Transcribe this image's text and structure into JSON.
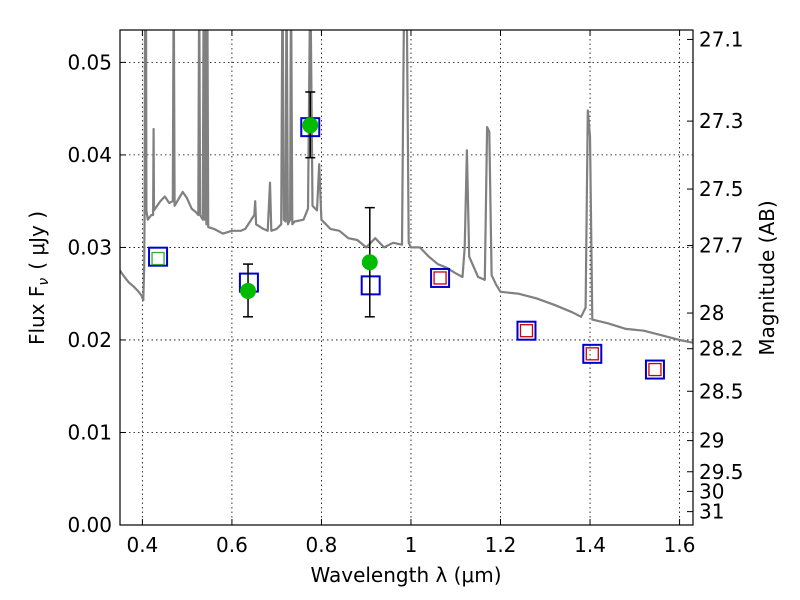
{
  "chart_data": {
    "type": "scatter",
    "xlabel": "Wavelength  λ (μm)",
    "ylabel_left": "Flux  F",
    "ylabel_left_sub": "ν",
    "ylabel_left_unit": "( μJy )",
    "ylabel_right": "Magnitude (AB)",
    "xlim": [
      0.35,
      1.63
    ],
    "ylim": [
      0.0,
      0.0535
    ],
    "grid": true,
    "x_ticks": [
      0.4,
      0.6,
      0.8,
      1.0,
      1.2,
      1.4,
      1.6
    ],
    "x_tick_labels": [
      "0.4",
      "0.6",
      "0.8",
      "1",
      "1.2",
      "1.4",
      "1.6"
    ],
    "y_ticks": [
      0.0,
      0.01,
      0.02,
      0.03,
      0.04,
      0.05
    ],
    "y_tick_labels": [
      "0.00",
      "0.01",
      "0.02",
      "0.03",
      "0.04",
      "0.05"
    ],
    "right_ticks": [
      27.1,
      27.3,
      27.5,
      27.7,
      28.0,
      28.2,
      28.5,
      29.0,
      29.5,
      30.0,
      31.0
    ],
    "right_tick_labels": [
      "27.1",
      "27.3",
      "27.5",
      "27.7",
      "28",
      "28.2",
      "28.5",
      "29",
      "29.5",
      "30",
      "31"
    ],
    "series": [
      {
        "kind": "line",
        "color": "#808080",
        "points": [
          [
            0.35,
            0.0275
          ],
          [
            0.36,
            0.0268
          ],
          [
            0.37,
            0.0262
          ],
          [
            0.38,
            0.0258
          ],
          [
            0.39,
            0.0253
          ],
          [
            0.398,
            0.0248
          ],
          [
            0.402,
            0.0243
          ],
          [
            0.404,
            0.028
          ],
          [
            0.405,
            0.034
          ],
          [
            0.406,
            0.06
          ],
          [
            0.408,
            0.06
          ],
          [
            0.409,
            0.034
          ],
          [
            0.412,
            0.033
          ],
          [
            0.42,
            0.0335
          ],
          [
            0.424,
            0.0335
          ],
          [
            0.425,
            0.0428
          ],
          [
            0.426,
            0.034
          ],
          [
            0.44,
            0.035
          ],
          [
            0.45,
            0.0355
          ],
          [
            0.46,
            0.0348
          ],
          [
            0.468,
            0.035
          ],
          [
            0.47,
            0.06
          ],
          [
            0.472,
            0.0345
          ],
          [
            0.49,
            0.036
          ],
          [
            0.5,
            0.0353
          ],
          [
            0.51,
            0.0342
          ],
          [
            0.52,
            0.0338
          ],
          [
            0.525,
            0.0335
          ],
          [
            0.527,
            0.06
          ],
          [
            0.529,
            0.0335
          ],
          [
            0.535,
            0.033
          ],
          [
            0.537,
            0.06
          ],
          [
            0.539,
            0.033
          ],
          [
            0.541,
            0.06
          ],
          [
            0.543,
            0.0325
          ],
          [
            0.545,
            0.06
          ],
          [
            0.547,
            0.0322
          ],
          [
            0.56,
            0.032
          ],
          [
            0.58,
            0.0315
          ],
          [
            0.6,
            0.0318
          ],
          [
            0.62,
            0.0318
          ],
          [
            0.63,
            0.032
          ],
          [
            0.65,
            0.0335
          ],
          [
            0.652,
            0.035
          ],
          [
            0.654,
            0.0325
          ],
          [
            0.67,
            0.032
          ],
          [
            0.68,
            0.0318
          ],
          [
            0.685,
            0.037
          ],
          [
            0.688,
            0.0318
          ],
          [
            0.7,
            0.032
          ],
          [
            0.71,
            0.0325
          ],
          [
            0.713,
            0.06
          ],
          [
            0.716,
            0.033
          ],
          [
            0.72,
            0.0328
          ],
          [
            0.722,
            0.06
          ],
          [
            0.725,
            0.0325
          ],
          [
            0.73,
            0.033
          ],
          [
            0.732,
            0.06
          ],
          [
            0.735,
            0.0325
          ],
          [
            0.74,
            0.0328
          ],
          [
            0.76,
            0.033
          ],
          [
            0.77,
            0.0342
          ],
          [
            0.775,
            0.06
          ],
          [
            0.78,
            0.0345
          ],
          [
            0.79,
            0.034
          ],
          [
            0.795,
            0.039
          ],
          [
            0.8,
            0.033
          ],
          [
            0.82,
            0.032
          ],
          [
            0.84,
            0.0318
          ],
          [
            0.86,
            0.031
          ],
          [
            0.88,
            0.0308
          ],
          [
            0.9,
            0.03
          ],
          [
            0.92,
            0.031
          ],
          [
            0.94,
            0.03
          ],
          [
            0.96,
            0.0305
          ],
          [
            0.98,
            0.0303
          ],
          [
            0.985,
            0.06
          ],
          [
            0.99,
            0.06
          ],
          [
            0.995,
            0.0305
          ],
          [
            1.0,
            0.03
          ],
          [
            1.02,
            0.03
          ],
          [
            1.04,
            0.029
          ],
          [
            1.06,
            0.0282
          ],
          [
            1.08,
            0.0278
          ],
          [
            1.1,
            0.0272
          ],
          [
            1.115,
            0.0268
          ],
          [
            1.12,
            0.03
          ],
          [
            1.125,
            0.0405
          ],
          [
            1.13,
            0.029
          ],
          [
            1.15,
            0.0268
          ],
          [
            1.165,
            0.0265
          ],
          [
            1.17,
            0.043
          ],
          [
            1.175,
            0.0425
          ],
          [
            1.18,
            0.027
          ],
          [
            1.19,
            0.026
          ],
          [
            1.2,
            0.0252
          ],
          [
            1.24,
            0.025
          ],
          [
            1.28,
            0.0245
          ],
          [
            1.32,
            0.0238
          ],
          [
            1.36,
            0.023
          ],
          [
            1.38,
            0.0225
          ],
          [
            1.39,
            0.0235
          ],
          [
            1.395,
            0.0448
          ],
          [
            1.4,
            0.042
          ],
          [
            1.405,
            0.0222
          ],
          [
            1.44,
            0.0218
          ],
          [
            1.48,
            0.0212
          ],
          [
            1.52,
            0.021
          ],
          [
            1.56,
            0.0205
          ],
          [
            1.6,
            0.02
          ],
          [
            1.63,
            0.0197
          ]
        ]
      },
      {
        "kind": "scatter",
        "marker": "square",
        "edge_color": "#0000cc",
        "points": [
          [
            0.435,
            0.029
          ],
          [
            0.638,
            0.0262
          ],
          [
            0.775,
            0.043
          ],
          [
            0.91,
            0.0259
          ],
          [
            1.065,
            0.0267
          ],
          [
            1.258,
            0.021
          ],
          [
            1.405,
            0.0185
          ],
          [
            1.545,
            0.0168
          ]
        ]
      },
      {
        "kind": "scatter",
        "marker": "square-small",
        "edge_color": "#cc0000",
        "points": [
          [
            1.065,
            0.0267
          ],
          [
            1.258,
            0.021
          ],
          [
            1.405,
            0.0185
          ],
          [
            1.545,
            0.0168
          ]
        ]
      },
      {
        "kind": "scatter",
        "marker": "square-small",
        "edge_color": "#33aa33",
        "points": [
          [
            0.435,
            0.0288
          ]
        ]
      },
      {
        "kind": "scatter",
        "marker": "circle",
        "color": "#00bb00",
        "points": [
          [
            0.636,
            0.0253
          ],
          [
            0.775,
            0.0432
          ],
          [
            0.908,
            0.0284
          ]
        ],
        "errors": [
          [
            0.0253,
            0.0225,
            0.0282
          ],
          [
            0.0432,
            0.0397,
            0.0468
          ],
          [
            0.0284,
            0.0225,
            0.0343
          ]
        ]
      }
    ]
  }
}
